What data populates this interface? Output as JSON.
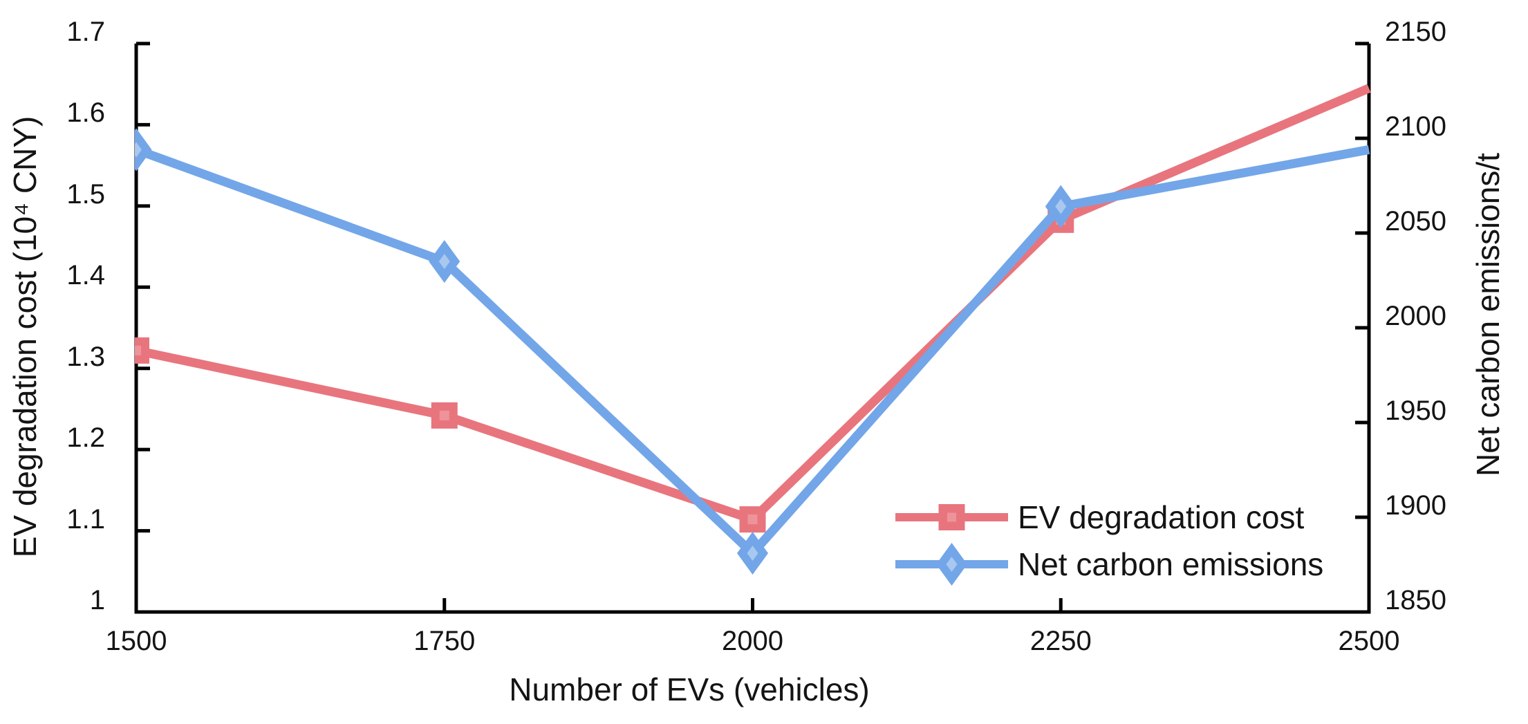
{
  "chart_data": {
    "type": "line",
    "title": "",
    "x_axis": {
      "label": "Number of EVs (vehicles)",
      "min": 1500,
      "max": 2500,
      "ticks": [
        {
          "v": 1500,
          "label": "1500"
        },
        {
          "v": 1750,
          "label": "1750"
        },
        {
          "v": 2000,
          "label": "2000"
        },
        {
          "v": 2250,
          "label": "2250"
        },
        {
          "v": 2500,
          "label": "2500"
        }
      ]
    },
    "left_axis": {
      "label": "EV degradation cost (10⁴ CNY)",
      "min": 1.0,
      "max": 1.7,
      "ticks": [
        {
          "v": 1.0,
          "label": "1"
        },
        {
          "v": 1.1,
          "label": "1.1"
        },
        {
          "v": 1.2,
          "label": "1.2"
        },
        {
          "v": 1.3,
          "label": "1.3"
        },
        {
          "v": 1.4,
          "label": "1.4"
        },
        {
          "v": 1.5,
          "label": "1.5"
        },
        {
          "v": 1.6,
          "label": "1.6"
        },
        {
          "v": 1.7,
          "label": "1.7"
        }
      ]
    },
    "right_axis": {
      "label": "Net carbon emissions/t",
      "min": 1850,
      "max": 2150,
      "ticks": [
        {
          "v": 1850,
          "label": "1850"
        },
        {
          "v": 1900,
          "label": "1900"
        },
        {
          "v": 1950,
          "label": "1950"
        },
        {
          "v": 2000,
          "label": "2000"
        },
        {
          "v": 2050,
          "label": "2050"
        },
        {
          "v": 2100,
          "label": "2100"
        },
        {
          "v": 2150,
          "label": "2150"
        }
      ]
    },
    "x": [
      1500,
      1750,
      2000,
      2250,
      2500
    ],
    "series": [
      {
        "name": "EV degradation cost",
        "axis": "left",
        "color": "#e8757d",
        "marker": "square",
        "marker_inner_color": "#ef939a",
        "values": [
          1.322,
          1.242,
          1.114,
          1.483,
          1.645
        ],
        "markers_at": [
          1500,
          1750,
          2000,
          2250
        ]
      },
      {
        "name": "Net carbon emissions",
        "axis": "right",
        "color": "#73a6e8",
        "marker": "diamond",
        "marker_inner_color": "#a8c8f0",
        "values": [
          2094,
          2035,
          1881,
          2064,
          2094
        ],
        "markers_at": [
          1500,
          1750,
          2000,
          2250
        ]
      }
    ],
    "legend": {
      "position": "inside-bottom-right",
      "entries": [
        "EV degradation cost",
        "Net carbon emissions"
      ]
    },
    "style": {
      "background": "#ffffff",
      "spine_color": "#000000",
      "text_color": "#141414",
      "grid": "off",
      "line_width": 13,
      "spine_width": 5,
      "tick_length": 20,
      "ticks_direction": "in"
    }
  }
}
